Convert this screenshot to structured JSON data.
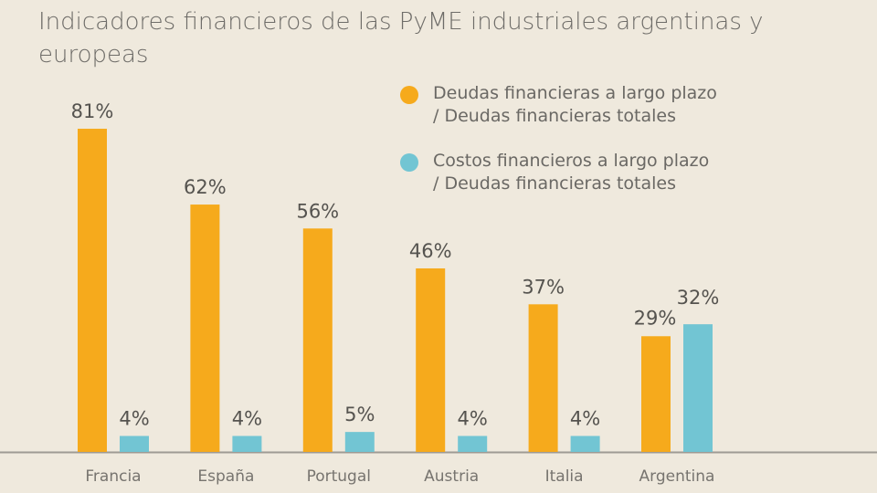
{
  "chart_data": {
    "type": "bar",
    "title": "Indicadores financieros de las PyME industriales argentinas y europeas",
    "categories": [
      "Francia",
      "España",
      "Portugal",
      "Austria",
      "Italia",
      "Argentina"
    ],
    "series": [
      {
        "name_line1": "Deudas financieras a largo plazo",
        "name_line2": "/ Deudas financieras totales",
        "color": "#f6aa1c",
        "values": [
          81,
          62,
          56,
          46,
          37,
          29
        ],
        "labels": [
          "81%",
          "62%",
          "56%",
          "46%",
          "37%",
          "29%"
        ]
      },
      {
        "name_line1": "Costos financieros a largo plazo",
        "name_line2": "/ Deudas financieras totales",
        "color": "#72c5d3",
        "values": [
          4,
          4,
          5,
          4,
          4,
          32
        ],
        "labels": [
          "4%",
          "4%",
          "5%",
          "4%",
          "4%",
          "32%"
        ]
      }
    ],
    "ylim": [
      0,
      100
    ],
    "grid": false,
    "legend": "top-right",
    "xlabel": "",
    "ylabel": ""
  }
}
